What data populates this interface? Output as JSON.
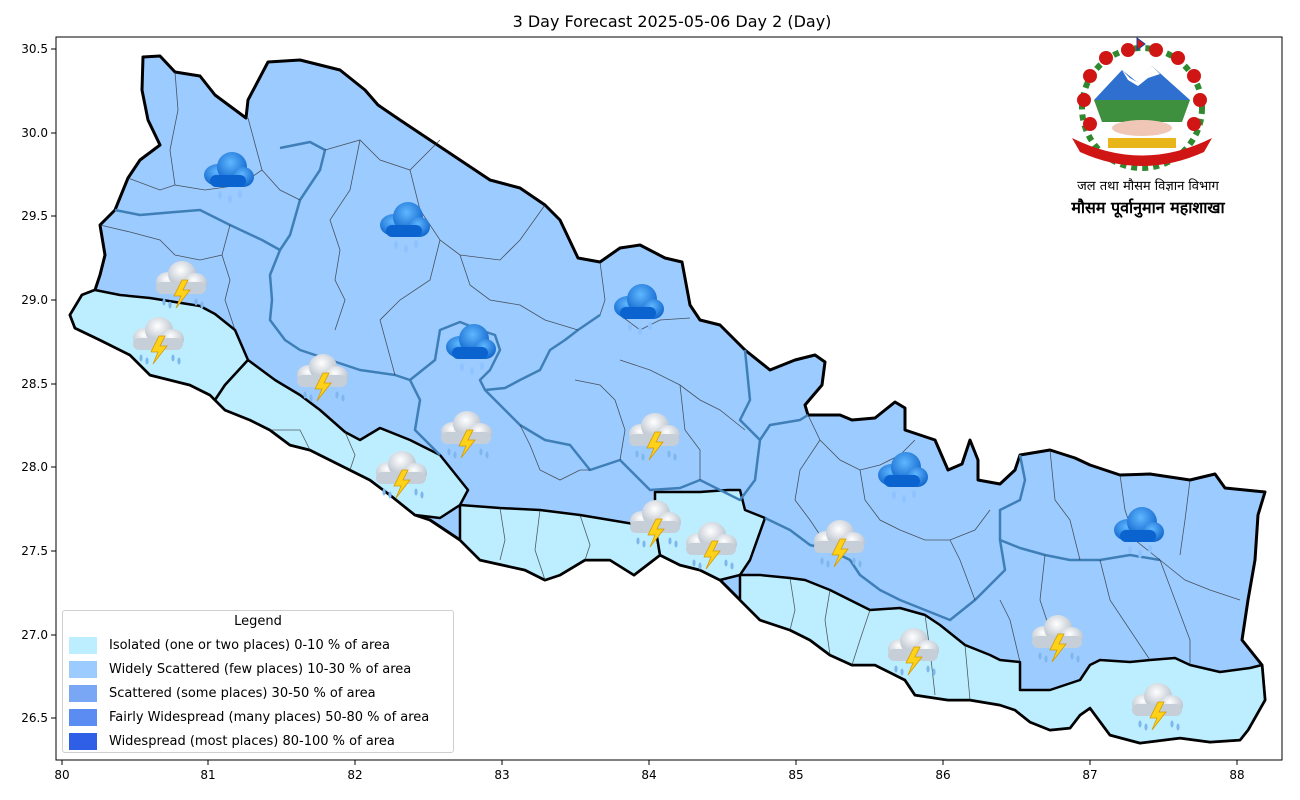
{
  "title": "3 Day Forecast 2025-05-06 Day 2 (Day)",
  "header": {
    "agency_line1": "जल तथा मौसम विज्ञान विभाग",
    "agency_line2": "मौसम पूर्वानुमान महाशाखा"
  },
  "axes": {
    "x_ticks": [
      "80",
      "81",
      "82",
      "83",
      "84",
      "85",
      "86",
      "87",
      "88"
    ],
    "y_ticks": [
      "30.5",
      "30.0",
      "29.5",
      "29.0",
      "28.5",
      "28.0",
      "27.5",
      "27.0",
      "26.5"
    ]
  },
  "legend": {
    "title": "Legend",
    "items": [
      {
        "label": "Isolated (one or two places)  0-10 % of area",
        "color": "#bdeeff"
      },
      {
        "label": "Widely Scattered (few places) 10-30 % of area",
        "color": "#9ccbff"
      },
      {
        "label": "Scattered (some places) 30-50  % of area",
        "color": "#79a7f6"
      },
      {
        "label": "Fairly Widespread (many places) 50-80 % of area",
        "color": "#5a8cf2"
      },
      {
        "label": "Widespread (most places) 80-100 % of area",
        "color": "#2f5fe6"
      }
    ]
  },
  "colors": {
    "isolated": "#bdeeff",
    "widely_scattered": "#9ccbff",
    "border": "#000000",
    "province_border": "#3f7fb8"
  },
  "icons": {
    "rain": "rain-cloud-icon",
    "thunder": "thunderstorm-icon"
  },
  "emblem": "nepal-emblem-icon"
}
